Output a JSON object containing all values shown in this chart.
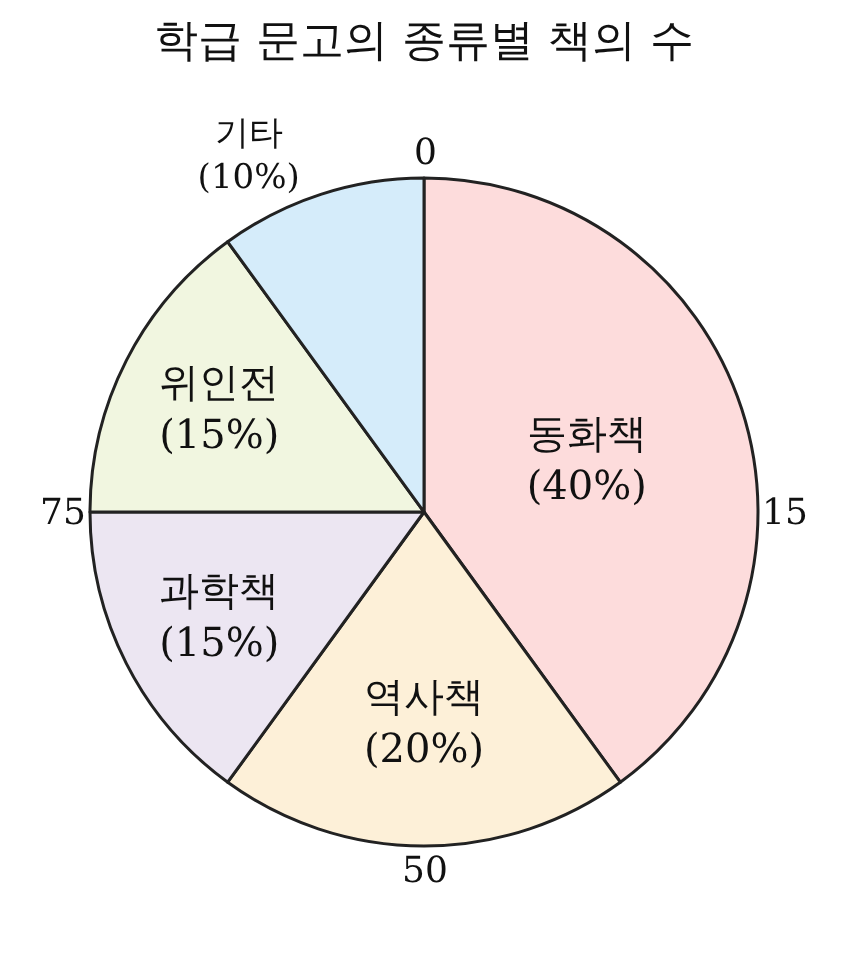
{
  "chart_data": {
    "type": "pie",
    "title": "학급 문고의 종류별 책의 수",
    "categories": [
      "동화책",
      "역사책",
      "과학책",
      "위인전",
      "기타"
    ],
    "values": [
      40,
      20,
      15,
      15,
      10
    ],
    "value_labels": [
      "(40%)",
      "(20%)",
      "(15%)",
      "(15%)",
      "(10%)"
    ],
    "colors": [
      "#fddcdc",
      "#fdf0d8",
      "#ece6f2",
      "#f1f6e0",
      "#d5ecfa"
    ],
    "annotations": [
      "0",
      "15",
      "50",
      "75"
    ],
    "legend": false
  }
}
